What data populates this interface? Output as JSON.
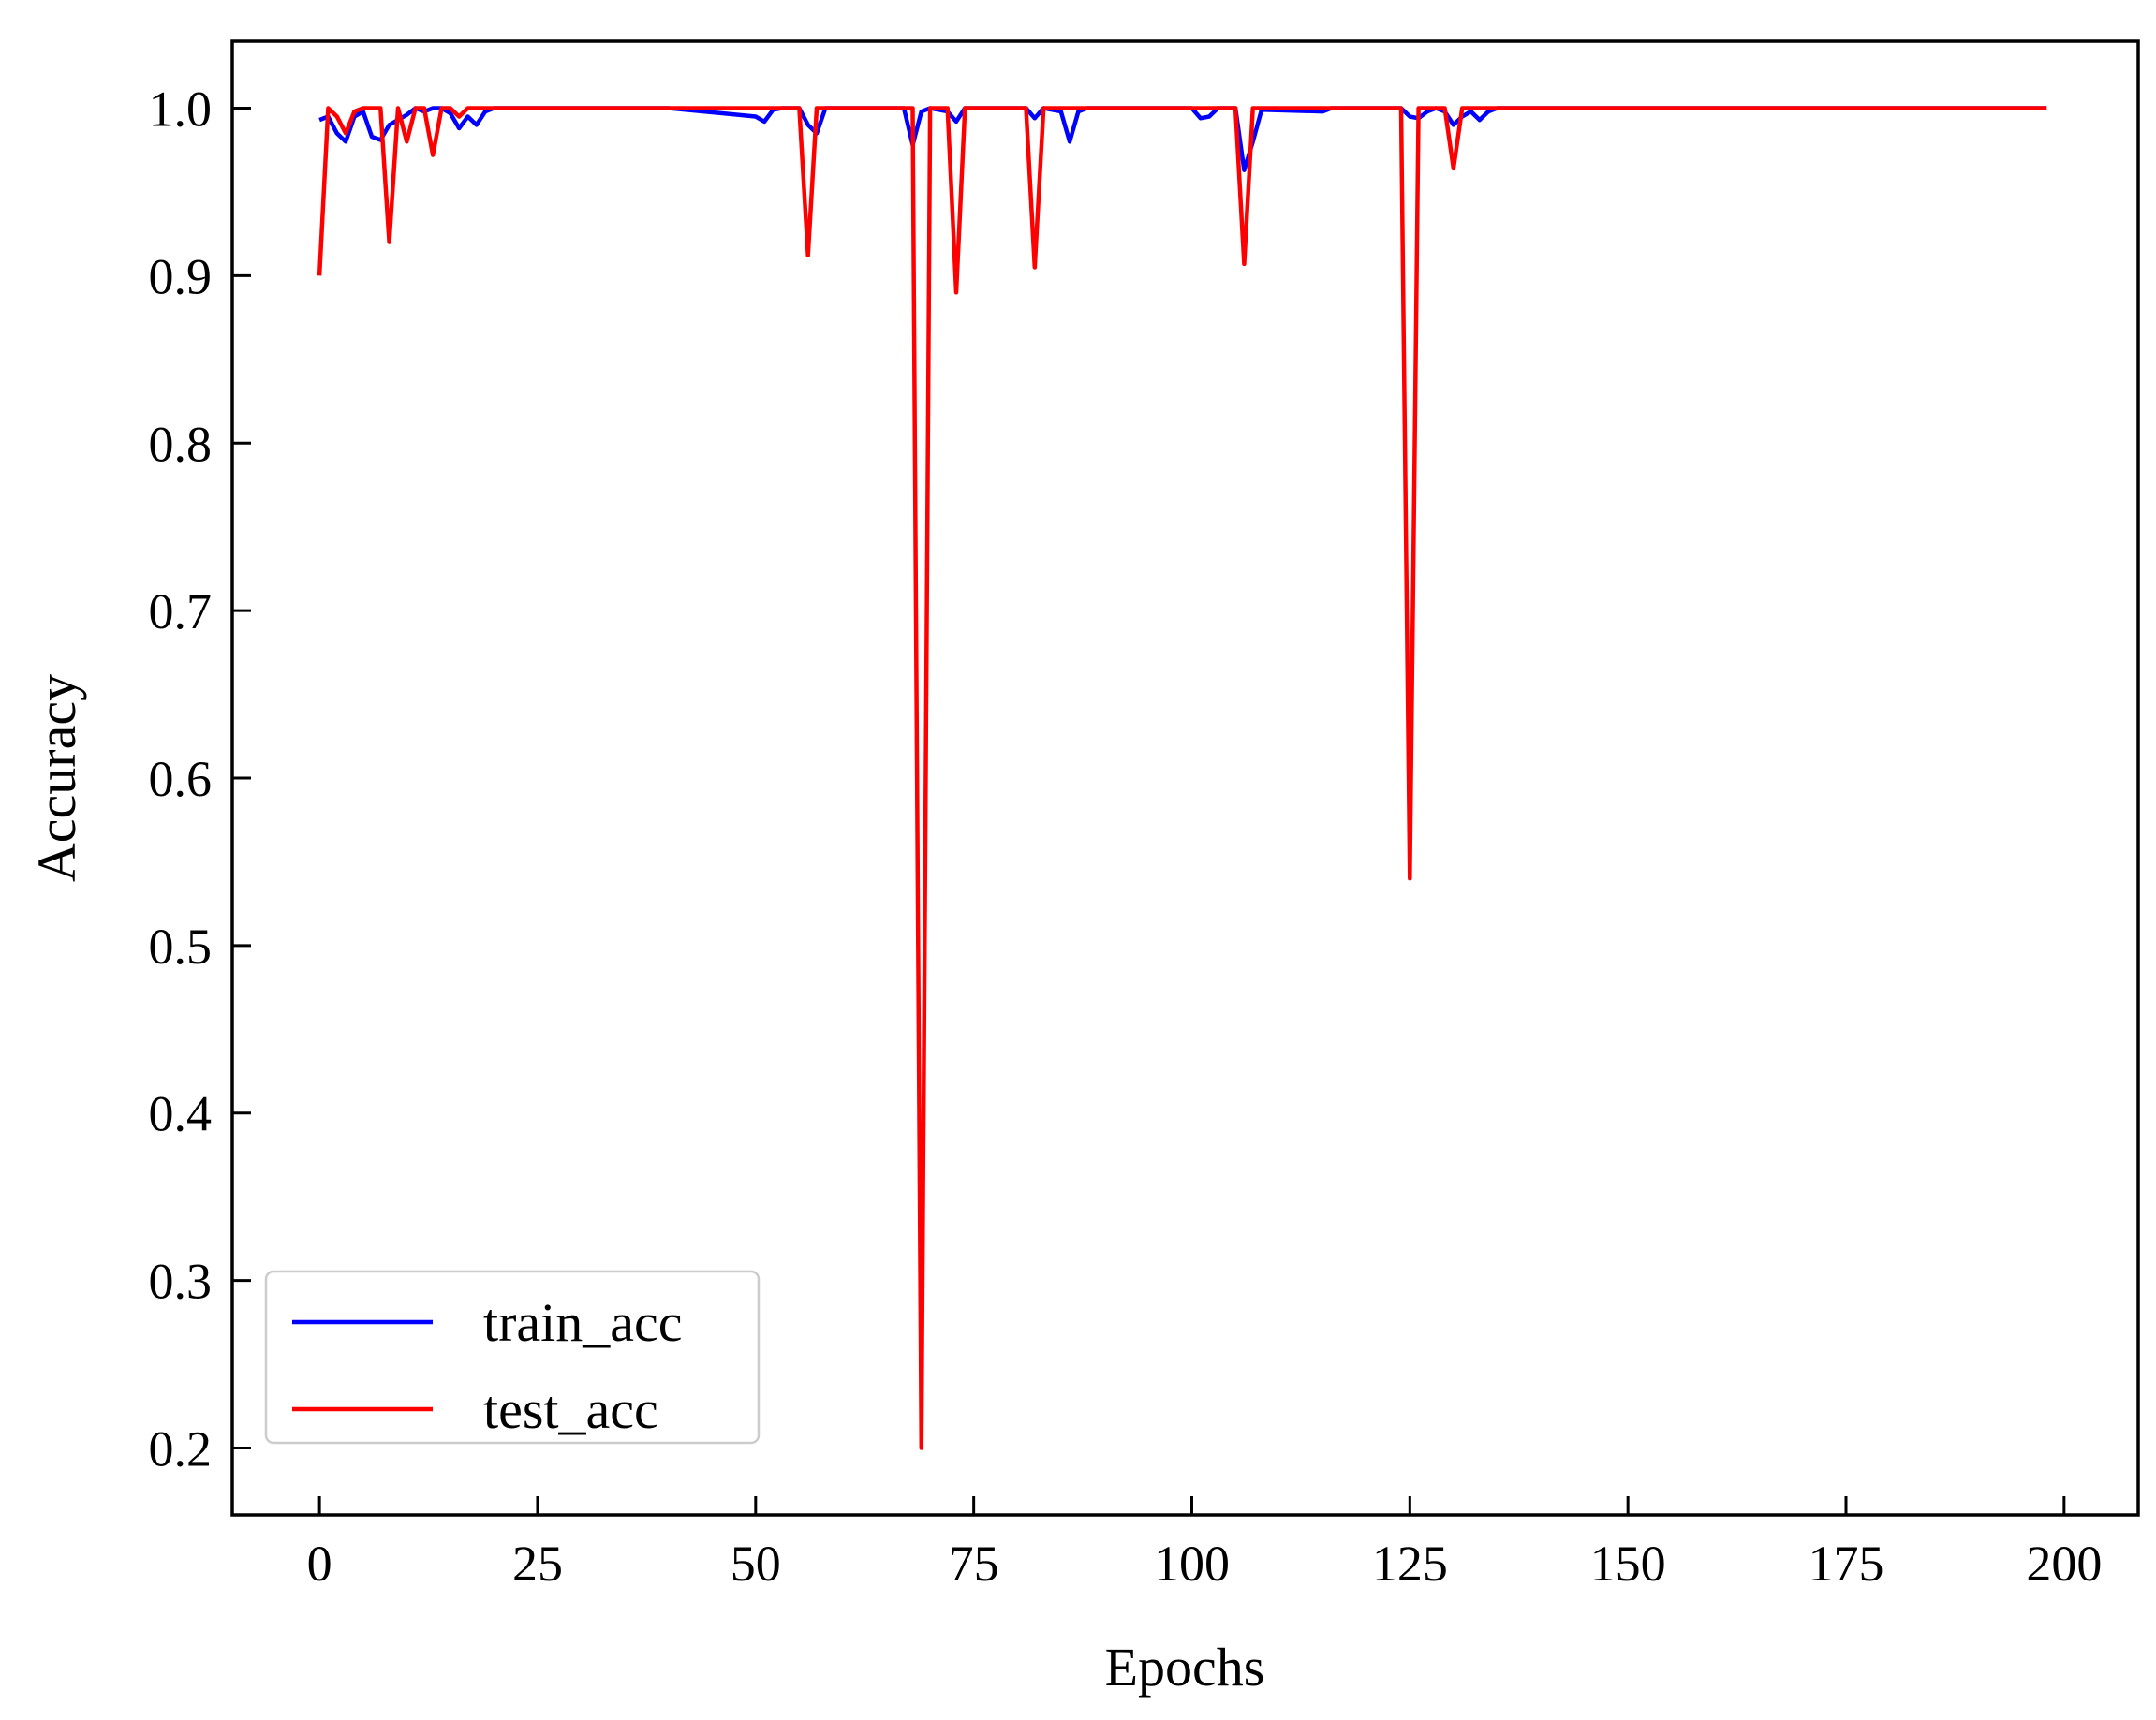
{
  "chart_data": {
    "type": "line",
    "title": "",
    "xlabel": "Epochs",
    "ylabel": "Accuracy",
    "xlim": [
      -10,
      208.5
    ],
    "ylim": [
      0.16,
      1.04
    ],
    "xticks": [
      0,
      25,
      50,
      75,
      100,
      125,
      150,
      175,
      200
    ],
    "yticks": [
      0.2,
      0.3,
      0.4,
      0.5,
      0.6,
      0.7,
      0.8,
      0.9,
      1.0
    ],
    "xtick_labels": [
      "0",
      "25",
      "50",
      "75",
      "100",
      "125",
      "150",
      "175",
      "200"
    ],
    "ytick_labels": [
      "0.2",
      "0.3",
      "0.4",
      "0.5",
      "0.6",
      "0.7",
      "0.8",
      "0.9",
      "1.0"
    ],
    "grid": false,
    "legend_position": "lower-left",
    "series": [
      {
        "name": "train_acc",
        "color": "#0000ff",
        "points": [
          [
            0,
            0.993
          ],
          [
            1,
            0.995
          ],
          [
            2,
            0.985
          ],
          [
            3,
            0.98
          ],
          [
            4,
            0.995
          ],
          [
            5,
            0.998
          ],
          [
            6,
            0.983
          ],
          [
            7,
            0.981
          ],
          [
            8,
            0.99
          ],
          [
            9,
            0.993
          ],
          [
            10,
            0.996
          ],
          [
            11,
            1.0
          ],
          [
            12,
            0.998
          ],
          [
            13,
            1.0
          ],
          [
            14,
            1.0
          ],
          [
            15,
            0.997
          ],
          [
            16,
            0.988
          ],
          [
            17,
            0.995
          ],
          [
            18,
            0.99
          ],
          [
            19,
            0.998
          ],
          [
            20,
            1.0
          ],
          [
            40,
            1.0
          ],
          [
            50,
            0.995
          ],
          [
            51,
            0.992
          ],
          [
            52,
            0.999
          ],
          [
            53,
            1.0
          ],
          [
            55,
            1.0
          ],
          [
            56,
            0.99
          ],
          [
            57,
            0.985
          ],
          [
            58,
            1.0
          ],
          [
            67,
            1.0
          ],
          [
            68,
            0.978
          ],
          [
            69,
            0.998
          ],
          [
            70,
            1.0
          ],
          [
            72,
            0.998
          ],
          [
            73,
            0.992
          ],
          [
            74,
            1.0
          ],
          [
            81,
            1.0
          ],
          [
            82,
            0.994
          ],
          [
            83,
            1.0
          ],
          [
            85,
            0.998
          ],
          [
            86,
            0.98
          ],
          [
            87,
            0.998
          ],
          [
            88,
            1.0
          ],
          [
            100,
            1.0
          ],
          [
            101,
            0.994
          ],
          [
            102,
            0.995
          ],
          [
            103,
            1.0
          ],
          [
            105,
            1.0
          ],
          [
            106,
            0.963
          ],
          [
            107,
            0.98
          ],
          [
            108,
            0.999
          ],
          [
            115,
            0.998
          ],
          [
            116,
            1.0
          ],
          [
            124,
            1.0
          ],
          [
            125,
            0.995
          ],
          [
            126,
            0.994
          ],
          [
            127,
            0.998
          ],
          [
            128,
            1.0
          ],
          [
            129,
            0.998
          ],
          [
            130,
            0.99
          ],
          [
            131,
            0.995
          ],
          [
            132,
            0.998
          ],
          [
            133,
            0.993
          ],
          [
            134,
            0.998
          ],
          [
            135,
            1.0
          ],
          [
            198,
            1.0
          ]
        ]
      },
      {
        "name": "test_acc",
        "color": "#ff0000",
        "points": [
          [
            0,
            0.9
          ],
          [
            1,
            1.0
          ],
          [
            2,
            0.995
          ],
          [
            3,
            0.985
          ],
          [
            4,
            0.998
          ],
          [
            5,
            1.0
          ],
          [
            6,
            1.0
          ],
          [
            7,
            1.0
          ],
          [
            8,
            0.92
          ],
          [
            9,
            1.0
          ],
          [
            10,
            0.98
          ],
          [
            11,
            1.0
          ],
          [
            12,
            1.0
          ],
          [
            13,
            0.972
          ],
          [
            14,
            1.0
          ],
          [
            15,
            1.0
          ],
          [
            16,
            0.995
          ],
          [
            17,
            1.0
          ],
          [
            55,
            1.0
          ],
          [
            56,
            0.912
          ],
          [
            57,
            1.0
          ],
          [
            68,
            1.0
          ],
          [
            69,
            0.2
          ],
          [
            70,
            1.0
          ],
          [
            72,
            1.0
          ],
          [
            73,
            0.89
          ],
          [
            74,
            1.0
          ],
          [
            81,
            1.0
          ],
          [
            82,
            0.905
          ],
          [
            83,
            1.0
          ],
          [
            105,
            1.0
          ],
          [
            106,
            0.907
          ],
          [
            107,
            1.0
          ],
          [
            124,
            1.0
          ],
          [
            125,
            0.54
          ],
          [
            126,
            1.0
          ],
          [
            129,
            1.0
          ],
          [
            130,
            0.964
          ],
          [
            131,
            1.0
          ],
          [
            198,
            1.0
          ]
        ]
      }
    ]
  }
}
